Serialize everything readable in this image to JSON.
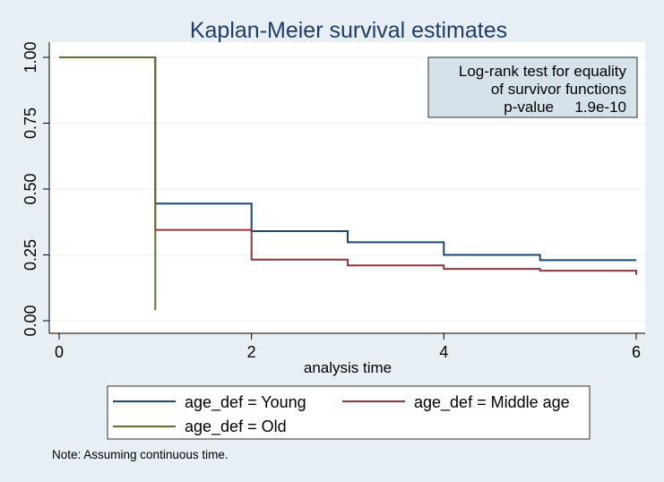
{
  "chart_data": {
    "type": "line",
    "title": "Kaplan-Meier survival estimates",
    "xlabel": "analysis time",
    "ylabel": "",
    "xlim": [
      0,
      6
    ],
    "ylim": [
      0,
      1
    ],
    "xticks": [
      "0",
      "2",
      "4",
      "6"
    ],
    "yticks": [
      "0.00",
      "0.25",
      "0.50",
      "0.75",
      "1.00"
    ],
    "grid": true,
    "step": true,
    "series": [
      {
        "name": "age_def = Young",
        "color": "#1a476f",
        "x": [
          0,
          1,
          1,
          2,
          2,
          3,
          3,
          4,
          4,
          5,
          5,
          6
        ],
        "y": [
          1.0,
          1.0,
          0.445,
          0.445,
          0.34,
          0.34,
          0.298,
          0.298,
          0.25,
          0.25,
          0.23,
          0.23
        ]
      },
      {
        "name": "age_def = Middle age",
        "color": "#90353b",
        "x": [
          0,
          1,
          1,
          2,
          2,
          3,
          3,
          4,
          4,
          5,
          5,
          6,
          6
        ],
        "y": [
          1.0,
          1.0,
          0.345,
          0.345,
          0.232,
          0.232,
          0.21,
          0.21,
          0.197,
          0.197,
          0.19,
          0.19,
          0.175
        ]
      },
      {
        "name": "age_def = Old",
        "color": "#55752f",
        "x": [
          0,
          1,
          1
        ],
        "y": [
          1.0,
          1.0,
          0.04
        ]
      }
    ],
    "annotation": {
      "line1": "Log-rank test for equality",
      "line2": "of survivor functions",
      "pvalue_label": "p-value",
      "pvalue": "1.9e-10"
    },
    "legend": {
      "position": "bottom",
      "entries": [
        "age_def = Young",
        "age_def = Middle age",
        "age_def = Old"
      ]
    },
    "note": "Note: Assuming continuous time."
  }
}
